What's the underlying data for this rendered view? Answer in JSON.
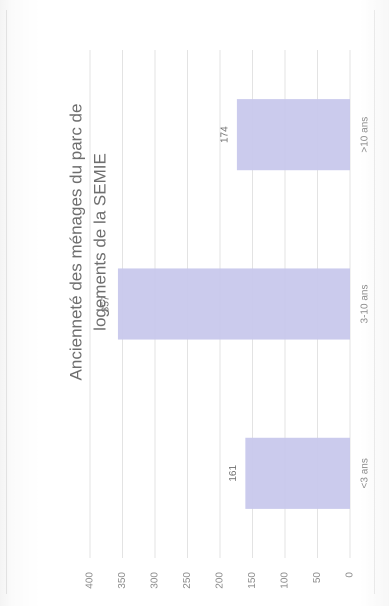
{
  "chart_data": {
    "type": "bar",
    "orientation": "vertical",
    "rotation": "rotated-90-ccw",
    "title_lines": [
      "Ancienneté des ménages du parc de",
      "logements de la SEMIE"
    ],
    "categories": [
      "<3 ans",
      "3-10 ans",
      ">10 ans"
    ],
    "values": [
      161,
      357,
      174
    ],
    "data_labels": [
      "161",
      "357",
      "174"
    ],
    "ylim": [
      0,
      400
    ],
    "yticks": [
      0,
      50,
      100,
      150,
      200,
      250,
      300,
      350,
      400
    ],
    "ytick_labels": [
      "0",
      "50",
      "100",
      "150",
      "200",
      "250",
      "300",
      "350",
      "400"
    ],
    "grid": true,
    "legend": "none",
    "colors": {
      "bar": "#c8c8ec",
      "grid": "#e3e3e3",
      "text": "#7a7a7a"
    }
  }
}
